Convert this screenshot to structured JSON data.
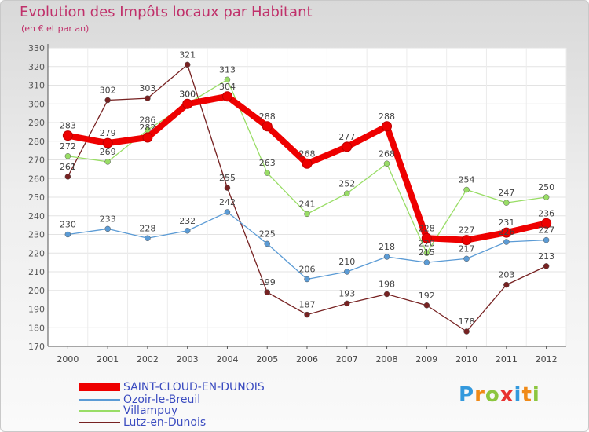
{
  "title": "Evolution des Impôts locaux par Habitant",
  "subtitle": "(en € et par an)",
  "brand": "Proxiti",
  "chart_data": {
    "type": "line",
    "title": "Evolution des Impôts locaux par Habitant",
    "ylabel": "(en € et par an)",
    "xlabel": "",
    "categories": [
      "2000",
      "2001",
      "2002",
      "2003",
      "2004",
      "2005",
      "2006",
      "2007",
      "2008",
      "2009",
      "2010",
      "2011",
      "2012"
    ],
    "ylim": [
      170,
      330
    ],
    "yticks": [
      170,
      180,
      190,
      200,
      210,
      220,
      230,
      240,
      250,
      260,
      270,
      280,
      290,
      300,
      310,
      320,
      330
    ],
    "grid": true,
    "series": [
      {
        "name": "SAINT-CLOUD-EN-DUNOIS",
        "color": "#ee0000",
        "values": [
          283,
          279,
          282,
          300,
          304,
          288,
          268,
          277,
          288,
          228,
          227,
          231,
          236
        ]
      },
      {
        "name": "Ozoir-le-Breuil",
        "color": "#5b9bd5",
        "values": [
          230,
          233,
          228,
          232,
          242,
          225,
          206,
          210,
          218,
          215,
          217,
          226,
          227
        ]
      },
      {
        "name": "Villampuy",
        "color": "#99dd66",
        "values": [
          272,
          269,
          286,
          300,
          313,
          263,
          241,
          252,
          268,
          220,
          254,
          247,
          250
        ]
      },
      {
        "name": "Lutz-en-Dunois",
        "color": "#772222",
        "values": [
          261,
          302,
          303,
          321,
          255,
          199,
          187,
          193,
          198,
          192,
          178,
          203,
          213
        ]
      }
    ],
    "legend": "bottom-left"
  }
}
